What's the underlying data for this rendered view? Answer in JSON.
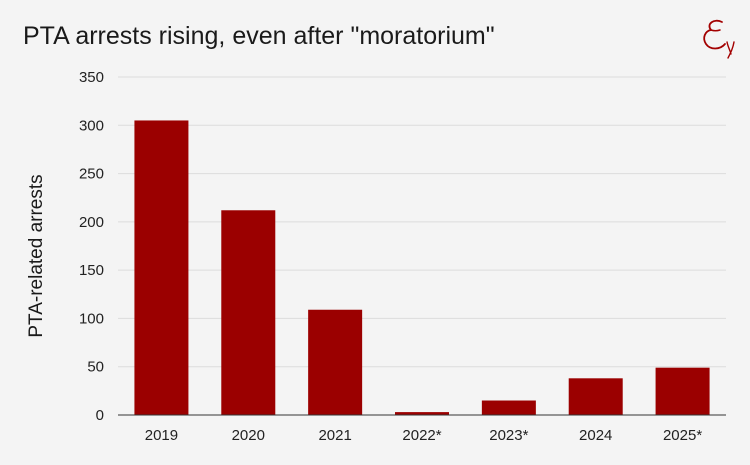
{
  "title": "PTA arrests rising, even after \"moratorium\"",
  "chart_data": {
    "type": "bar",
    "title": "PTA arrests rising, even after \"moratorium\"",
    "xlabel": "",
    "ylabel": "PTA-related arrests",
    "categories": [
      "2019",
      "2020",
      "2021",
      "2022*",
      "2023*",
      "2024",
      "2025*"
    ],
    "values": [
      305,
      212,
      109,
      3,
      15,
      38,
      49
    ],
    "ylim": [
      0,
      350
    ],
    "yticks": [
      0,
      50,
      100,
      150,
      200,
      250,
      300,
      350
    ],
    "grid": true,
    "legend": "none",
    "bar_color": "#9b0000"
  },
  "colors": {
    "background": "#f4f4f4",
    "bar": "#9b0000",
    "logo": "#a30000",
    "grid": "#dcdcdc"
  },
  "logo": {
    "icon": "script-e-logo"
  }
}
